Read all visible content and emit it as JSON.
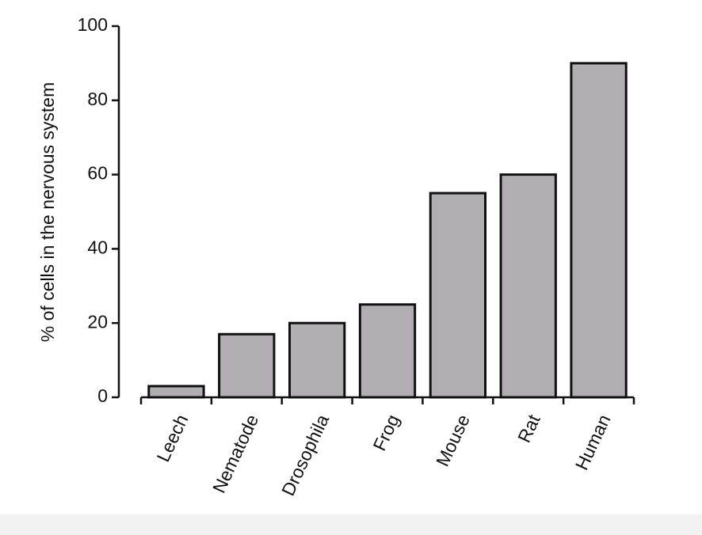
{
  "chart_data": {
    "type": "bar",
    "y_label": "% of cells in the nervous system",
    "categories": [
      "Leech",
      "Nematode",
      "Drosophila",
      "Frog",
      "Mouse",
      "Rat",
      "Human"
    ],
    "values": [
      3,
      17,
      20,
      25,
      55,
      60,
      90
    ],
    "color": "#b1aeb1",
    "ylim": [
      0,
      100
    ],
    "yticks": [
      0,
      20,
      40,
      60,
      80,
      100
    ],
    "grid": false
  }
}
